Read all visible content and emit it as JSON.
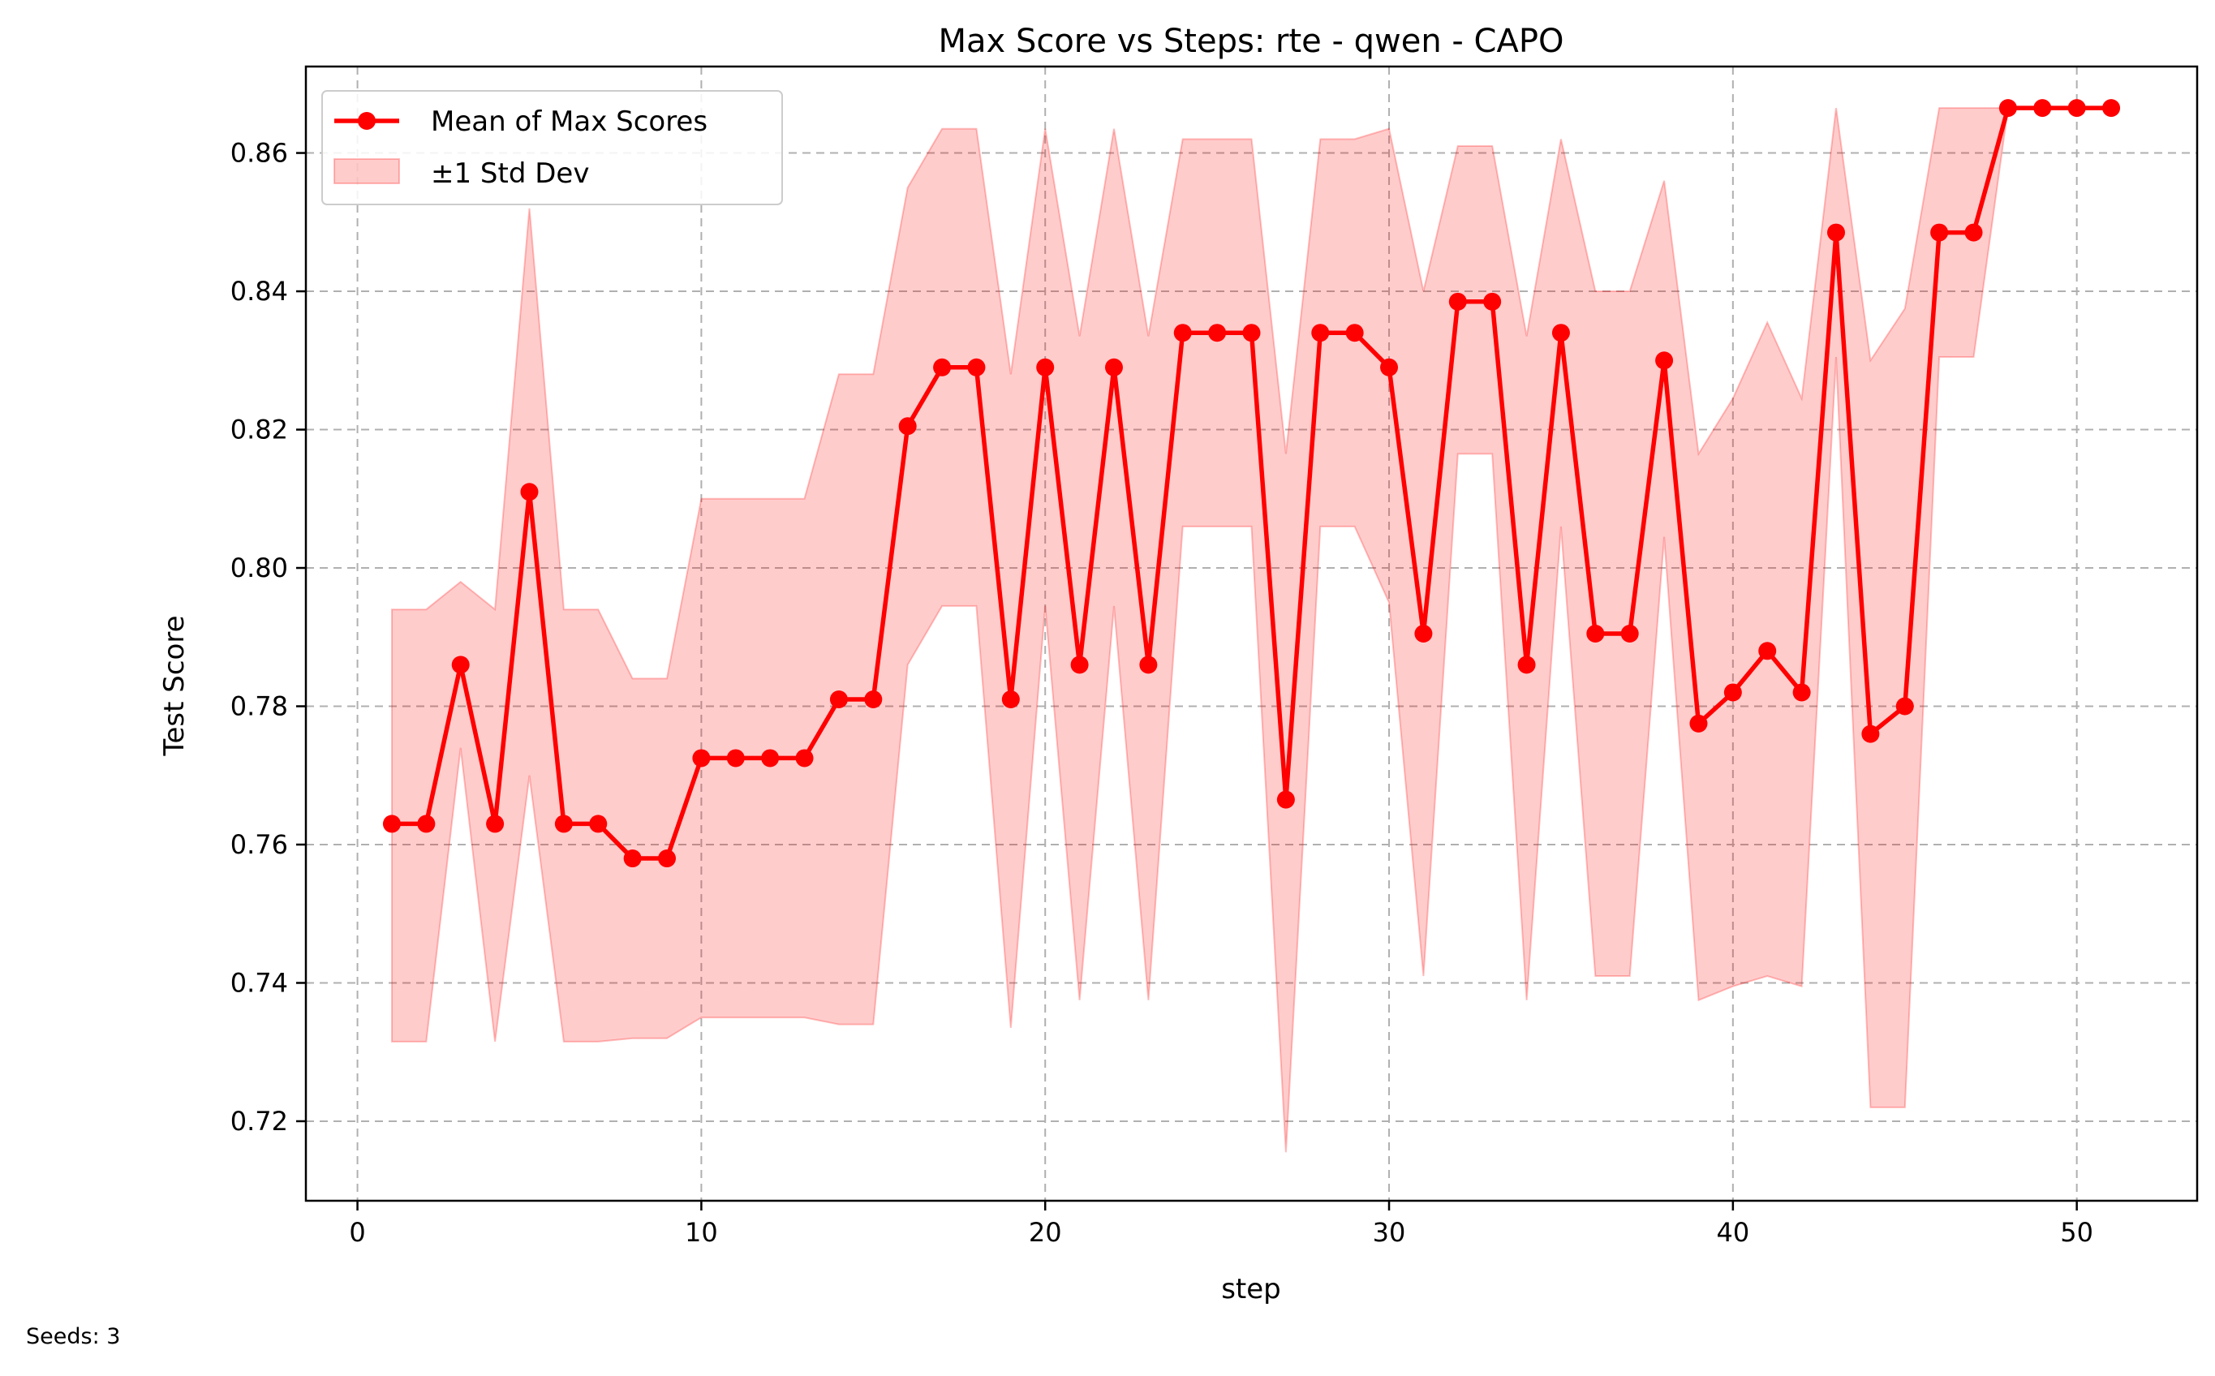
{
  "chart_data": {
    "type": "line",
    "title": "Max Score vs Steps: rte - qwen - CAPO",
    "xlabel": "step",
    "ylabel": "Test Score",
    "xlim": [
      -1.5,
      53.5
    ],
    "ylim": [
      0.7085,
      0.8725
    ],
    "xticks": [
      0,
      10,
      20,
      30,
      40,
      50
    ],
    "yticks": [
      0.72,
      0.74,
      0.76,
      0.78,
      0.8,
      0.82,
      0.84,
      0.86
    ],
    "ytick_labels": [
      "0.72",
      "0.74",
      "0.76",
      "0.78",
      "0.80",
      "0.82",
      "0.84",
      "0.86"
    ],
    "grid": true,
    "legend_position": "top-left",
    "legend": [
      "Mean of Max Scores",
      "±1 Std Dev"
    ],
    "x": [
      1,
      2,
      3,
      4,
      5,
      6,
      7,
      8,
      9,
      10,
      11,
      12,
      13,
      14,
      15,
      16,
      17,
      18,
      19,
      20,
      21,
      22,
      23,
      24,
      25,
      26,
      27,
      28,
      29,
      30,
      31,
      32,
      33,
      34,
      35,
      36,
      37,
      38,
      39,
      40,
      41,
      42,
      43,
      44,
      45,
      46,
      47,
      48,
      49,
      50,
      51
    ],
    "series": [
      {
        "name": "Mean of Max Scores",
        "color": "#ff0000",
        "values": [
          0.763,
          0.763,
          0.786,
          0.763,
          0.811,
          0.763,
          0.763,
          0.758,
          0.758,
          0.7725,
          0.7725,
          0.7725,
          0.7725,
          0.781,
          0.781,
          0.8205,
          0.829,
          0.829,
          0.781,
          0.829,
          0.786,
          0.829,
          0.786,
          0.834,
          0.834,
          0.834,
          0.7665,
          0.834,
          0.834,
          0.829,
          0.7905,
          0.8385,
          0.8385,
          0.786,
          0.834,
          0.7905,
          0.7905,
          0.83,
          0.7775,
          0.782,
          0.788,
          0.782,
          0.8485,
          0.776,
          0.78,
          0.8485,
          0.8485,
          0.8665,
          0.8665,
          0.8665,
          0.8665
        ]
      },
      {
        "name": "±1 Std Dev",
        "color": "#ff0000",
        "upper": [
          0.794,
          0.794,
          0.798,
          0.794,
          0.852,
          0.794,
          0.794,
          0.784,
          0.784,
          0.81,
          0.81,
          0.81,
          0.81,
          0.828,
          0.828,
          0.855,
          0.8635,
          0.8635,
          0.828,
          0.8635,
          0.8335,
          0.8635,
          0.8335,
          0.862,
          0.862,
          0.862,
          0.8165,
          0.862,
          0.862,
          0.8635,
          0.84,
          0.861,
          0.861,
          0.8335,
          0.862,
          0.84,
          0.84,
          0.856,
          0.8165,
          0.8245,
          0.8355,
          0.8245,
          0.8665,
          0.83,
          0.8375,
          0.8665,
          0.8665,
          0.8665,
          0.8665,
          0.8665,
          0.8665
        ],
        "lower": [
          0.7315,
          0.7315,
          0.774,
          0.7315,
          0.77,
          0.7315,
          0.7315,
          0.732,
          0.732,
          0.735,
          0.735,
          0.735,
          0.735,
          0.734,
          0.734,
          0.786,
          0.7945,
          0.7945,
          0.7335,
          0.7945,
          0.7375,
          0.7945,
          0.7375,
          0.806,
          0.806,
          0.806,
          0.7155,
          0.806,
          0.806,
          0.795,
          0.741,
          0.8165,
          0.8165,
          0.7375,
          0.806,
          0.741,
          0.741,
          0.8045,
          0.7375,
          0.7395,
          0.741,
          0.7395,
          0.8305,
          0.722,
          0.722,
          0.8305,
          0.8305,
          0.8665,
          0.8665,
          0.8665,
          0.8665
        ]
      }
    ]
  },
  "footnote": "Seeds: 3"
}
